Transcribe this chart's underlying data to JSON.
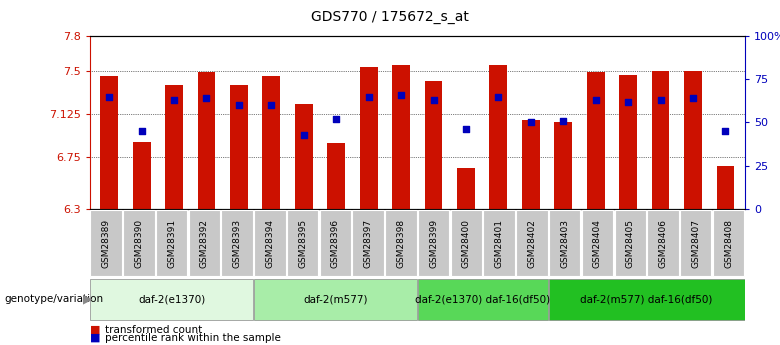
{
  "title": "GDS770 / 175672_s_at",
  "samples": [
    "GSM28389",
    "GSM28390",
    "GSM28391",
    "GSM28392",
    "GSM28393",
    "GSM28394",
    "GSM28395",
    "GSM28396",
    "GSM28397",
    "GSM28398",
    "GSM28399",
    "GSM28400",
    "GSM28401",
    "GSM28402",
    "GSM28403",
    "GSM28404",
    "GSM28405",
    "GSM28406",
    "GSM28407",
    "GSM28408"
  ],
  "bar_values": [
    7.45,
    6.88,
    7.38,
    7.49,
    7.38,
    7.45,
    7.21,
    6.87,
    7.53,
    7.55,
    7.41,
    6.65,
    7.55,
    7.07,
    7.05,
    7.49,
    7.46,
    7.5,
    7.5,
    6.67
  ],
  "blue_percentiles": [
    65,
    45,
    63,
    64,
    60,
    60,
    43,
    52,
    65,
    66,
    63,
    46,
    65,
    50,
    51,
    63,
    62,
    63,
    64,
    45
  ],
  "ymin": 6.3,
  "ymax": 7.8,
  "yticks": [
    6.3,
    6.75,
    7.125,
    7.5,
    7.8
  ],
  "ytick_labels": [
    "6.3",
    "6.75",
    "7.125",
    "7.5",
    "7.8"
  ],
  "right_yticks": [
    0,
    25,
    50,
    75,
    100
  ],
  "right_ytick_labels": [
    "0",
    "25",
    "50",
    "75",
    "100%"
  ],
  "groups": [
    {
      "label": "daf-2(e1370)",
      "start": 0,
      "end": 5,
      "color": "#e0f8e0"
    },
    {
      "label": "daf-2(m577)",
      "start": 5,
      "end": 10,
      "color": "#a8eda8"
    },
    {
      "label": "daf-2(e1370) daf-16(df50)",
      "start": 10,
      "end": 14,
      "color": "#58d858"
    },
    {
      "label": "daf-2(m577) daf-16(df50)",
      "start": 14,
      "end": 20,
      "color": "#22c022"
    }
  ],
  "bar_color": "#cc1100",
  "blue_color": "#0000bb",
  "left_color": "#cc1100",
  "right_color": "#0000bb",
  "sample_box_color": "#c8c8c8",
  "group_border_color": "#888888"
}
